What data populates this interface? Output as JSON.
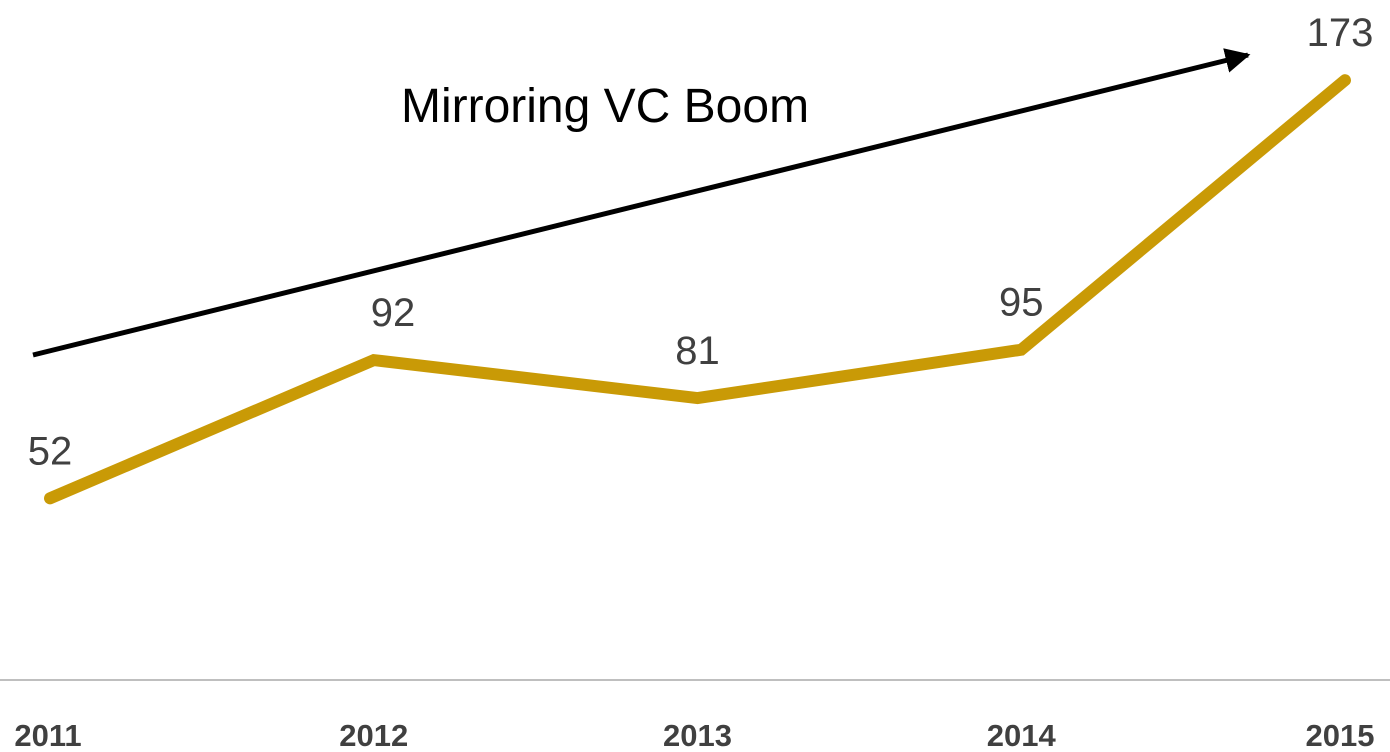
{
  "chart_data": {
    "type": "line",
    "annotation": "Mirroring VC Boom",
    "categories": [
      "2011",
      "2012",
      "2013",
      "2014",
      "2015"
    ],
    "series": [
      {
        "color": "#c99a06",
        "values": [
          52,
          92,
          81,
          95,
          173
        ]
      }
    ],
    "ylim": [
      0,
      180
    ]
  }
}
